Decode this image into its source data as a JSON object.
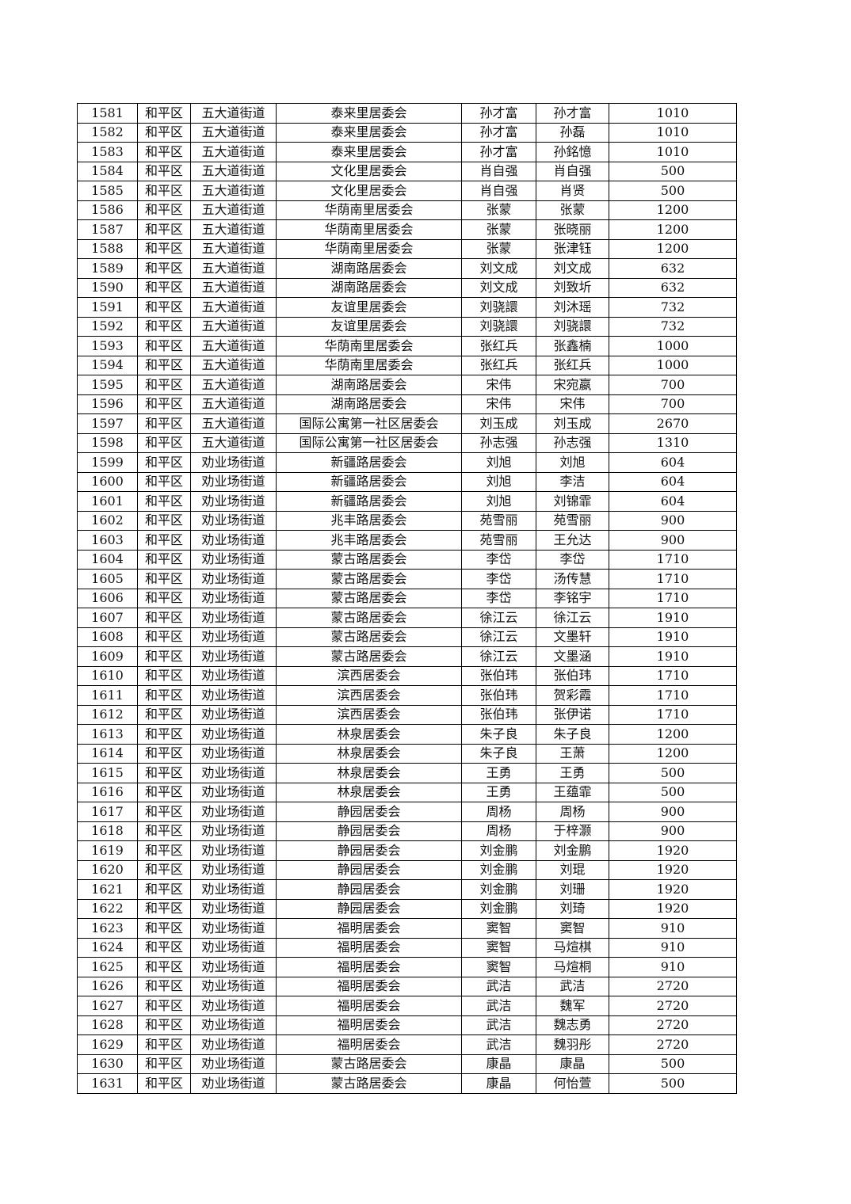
{
  "table": {
    "rows": [
      [
        "1581",
        "和平区",
        "五大道街道",
        "泰来里居委会",
        "孙才富",
        "孙才富",
        "1010"
      ],
      [
        "1582",
        "和平区",
        "五大道街道",
        "泰来里居委会",
        "孙才富",
        "孙磊",
        "1010"
      ],
      [
        "1583",
        "和平区",
        "五大道街道",
        "泰来里居委会",
        "孙才富",
        "孙銘憶",
        "1010"
      ],
      [
        "1584",
        "和平区",
        "五大道街道",
        "文化里居委会",
        "肖自强",
        "肖自强",
        "500"
      ],
      [
        "1585",
        "和平区",
        "五大道街道",
        "文化里居委会",
        "肖自强",
        "肖贤",
        "500"
      ],
      [
        "1586",
        "和平区",
        "五大道街道",
        "华荫南里居委会",
        "张蒙",
        "张蒙",
        "1200"
      ],
      [
        "1587",
        "和平区",
        "五大道街道",
        "华荫南里居委会",
        "张蒙",
        "张晓丽",
        "1200"
      ],
      [
        "1588",
        "和平区",
        "五大道街道",
        "华荫南里居委会",
        "张蒙",
        "张津钰",
        "1200"
      ],
      [
        "1589",
        "和平区",
        "五大道街道",
        "湖南路居委会",
        "刘文成",
        "刘文成",
        "632"
      ],
      [
        "1590",
        "和平区",
        "五大道街道",
        "湖南路居委会",
        "刘文成",
        "刘致圻",
        "632"
      ],
      [
        "1591",
        "和平区",
        "五大道街道",
        "友谊里居委会",
        "刘骁譞",
        "刘沐瑶",
        "732"
      ],
      [
        "1592",
        "和平区",
        "五大道街道",
        "友谊里居委会",
        "刘骁譞",
        "刘骁譞",
        "732"
      ],
      [
        "1593",
        "和平区",
        "五大道街道",
        "华荫南里居委会",
        "张红兵",
        "张鑫楠",
        "1000"
      ],
      [
        "1594",
        "和平区",
        "五大道街道",
        "华荫南里居委会",
        "张红兵",
        "张红兵",
        "1000"
      ],
      [
        "1595",
        "和平区",
        "五大道街道",
        "湖南路居委会",
        "宋伟",
        "宋宛嬴",
        "700"
      ],
      [
        "1596",
        "和平区",
        "五大道街道",
        "湖南路居委会",
        "宋伟",
        "宋伟",
        "700"
      ],
      [
        "1597",
        "和平区",
        "五大道街道",
        "国际公寓第一社区居委会",
        "刘玉成",
        "刘玉成",
        "2670"
      ],
      [
        "1598",
        "和平区",
        "五大道街道",
        "国际公寓第一社区居委会",
        "孙志强",
        "孙志强",
        "1310"
      ],
      [
        "1599",
        "和平区",
        "劝业场街道",
        "新疆路居委会",
        "刘旭",
        "刘旭",
        "604"
      ],
      [
        "1600",
        "和平区",
        "劝业场街道",
        "新疆路居委会",
        "刘旭",
        "李洁",
        "604"
      ],
      [
        "1601",
        "和平区",
        "劝业场街道",
        "新疆路居委会",
        "刘旭",
        "刘锦霏",
        "604"
      ],
      [
        "1602",
        "和平区",
        "劝业场街道",
        "兆丰路居委会",
        "苑雪丽",
        "苑雪丽",
        "900"
      ],
      [
        "1603",
        "和平区",
        "劝业场街道",
        "兆丰路居委会",
        "苑雪丽",
        "王允达",
        "900"
      ],
      [
        "1604",
        "和平区",
        "劝业场街道",
        "蒙古路居委会",
        "李岱",
        "李岱",
        "1710"
      ],
      [
        "1605",
        "和平区",
        "劝业场街道",
        "蒙古路居委会",
        "李岱",
        "汤传慧",
        "1710"
      ],
      [
        "1606",
        "和平区",
        "劝业场街道",
        "蒙古路居委会",
        "李岱",
        "李铭宇",
        "1710"
      ],
      [
        "1607",
        "和平区",
        "劝业场街道",
        "蒙古路居委会",
        "徐江云",
        "徐江云",
        "1910"
      ],
      [
        "1608",
        "和平区",
        "劝业场街道",
        "蒙古路居委会",
        "徐江云",
        "文墨轩",
        "1910"
      ],
      [
        "1609",
        "和平区",
        "劝业场街道",
        "蒙古路居委会",
        "徐江云",
        "文墨涵",
        "1910"
      ],
      [
        "1610",
        "和平区",
        "劝业场街道",
        "滨西居委会",
        "张伯玮",
        "张伯玮",
        "1710"
      ],
      [
        "1611",
        "和平区",
        "劝业场街道",
        "滨西居委会",
        "张伯玮",
        "贺彩霞",
        "1710"
      ],
      [
        "1612",
        "和平区",
        "劝业场街道",
        "滨西居委会",
        "张伯玮",
        "张伊诺",
        "1710"
      ],
      [
        "1613",
        "和平区",
        "劝业场街道",
        "林泉居委会",
        "朱子良",
        "朱子良",
        "1200"
      ],
      [
        "1614",
        "和平区",
        "劝业场街道",
        "林泉居委会",
        "朱子良",
        "王萧",
        "1200"
      ],
      [
        "1615",
        "和平区",
        "劝业场街道",
        "林泉居委会",
        "王勇",
        "王勇",
        "500"
      ],
      [
        "1616",
        "和平区",
        "劝业场街道",
        "林泉居委会",
        "王勇",
        "王蕴霏",
        "500"
      ],
      [
        "1617",
        "和平区",
        "劝业场街道",
        "静园居委会",
        "周杨",
        "周杨",
        "900"
      ],
      [
        "1618",
        "和平区",
        "劝业场街道",
        "静园居委会",
        "周杨",
        "于梓灏",
        "900"
      ],
      [
        "1619",
        "和平区",
        "劝业场街道",
        "静园居委会",
        "刘金鹏",
        "刘金鹏",
        "1920"
      ],
      [
        "1620",
        "和平区",
        "劝业场街道",
        "静园居委会",
        "刘金鹏",
        "刘琨",
        "1920"
      ],
      [
        "1621",
        "和平区",
        "劝业场街道",
        "静园居委会",
        "刘金鹏",
        "刘珊",
        "1920"
      ],
      [
        "1622",
        "和平区",
        "劝业场街道",
        "静园居委会",
        "刘金鹏",
        "刘琦",
        "1920"
      ],
      [
        "1623",
        "和平区",
        "劝业场街道",
        "福明居委会",
        "窦智",
        "窦智",
        "910"
      ],
      [
        "1624",
        "和平区",
        "劝业场街道",
        "福明居委会",
        "窦智",
        "马煊棋",
        "910"
      ],
      [
        "1625",
        "和平区",
        "劝业场街道",
        "福明居委会",
        "窦智",
        "马煊桐",
        "910"
      ],
      [
        "1626",
        "和平区",
        "劝业场街道",
        "福明居委会",
        "武洁",
        "武洁",
        "2720"
      ],
      [
        "1627",
        "和平区",
        "劝业场街道",
        "福明居委会",
        "武洁",
        "魏军",
        "2720"
      ],
      [
        "1628",
        "和平区",
        "劝业场街道",
        "福明居委会",
        "武洁",
        "魏志勇",
        "2720"
      ],
      [
        "1629",
        "和平区",
        "劝业场街道",
        "福明居委会",
        "武洁",
        "魏羽彤",
        "2720"
      ],
      [
        "1630",
        "和平区",
        "劝业场街道",
        "蒙古路居委会",
        "康晶",
        "康晶",
        "500"
      ],
      [
        "1631",
        "和平区",
        "劝业场街道",
        "蒙古路居委会",
        "康晶",
        "何怡萱",
        "500"
      ]
    ]
  }
}
